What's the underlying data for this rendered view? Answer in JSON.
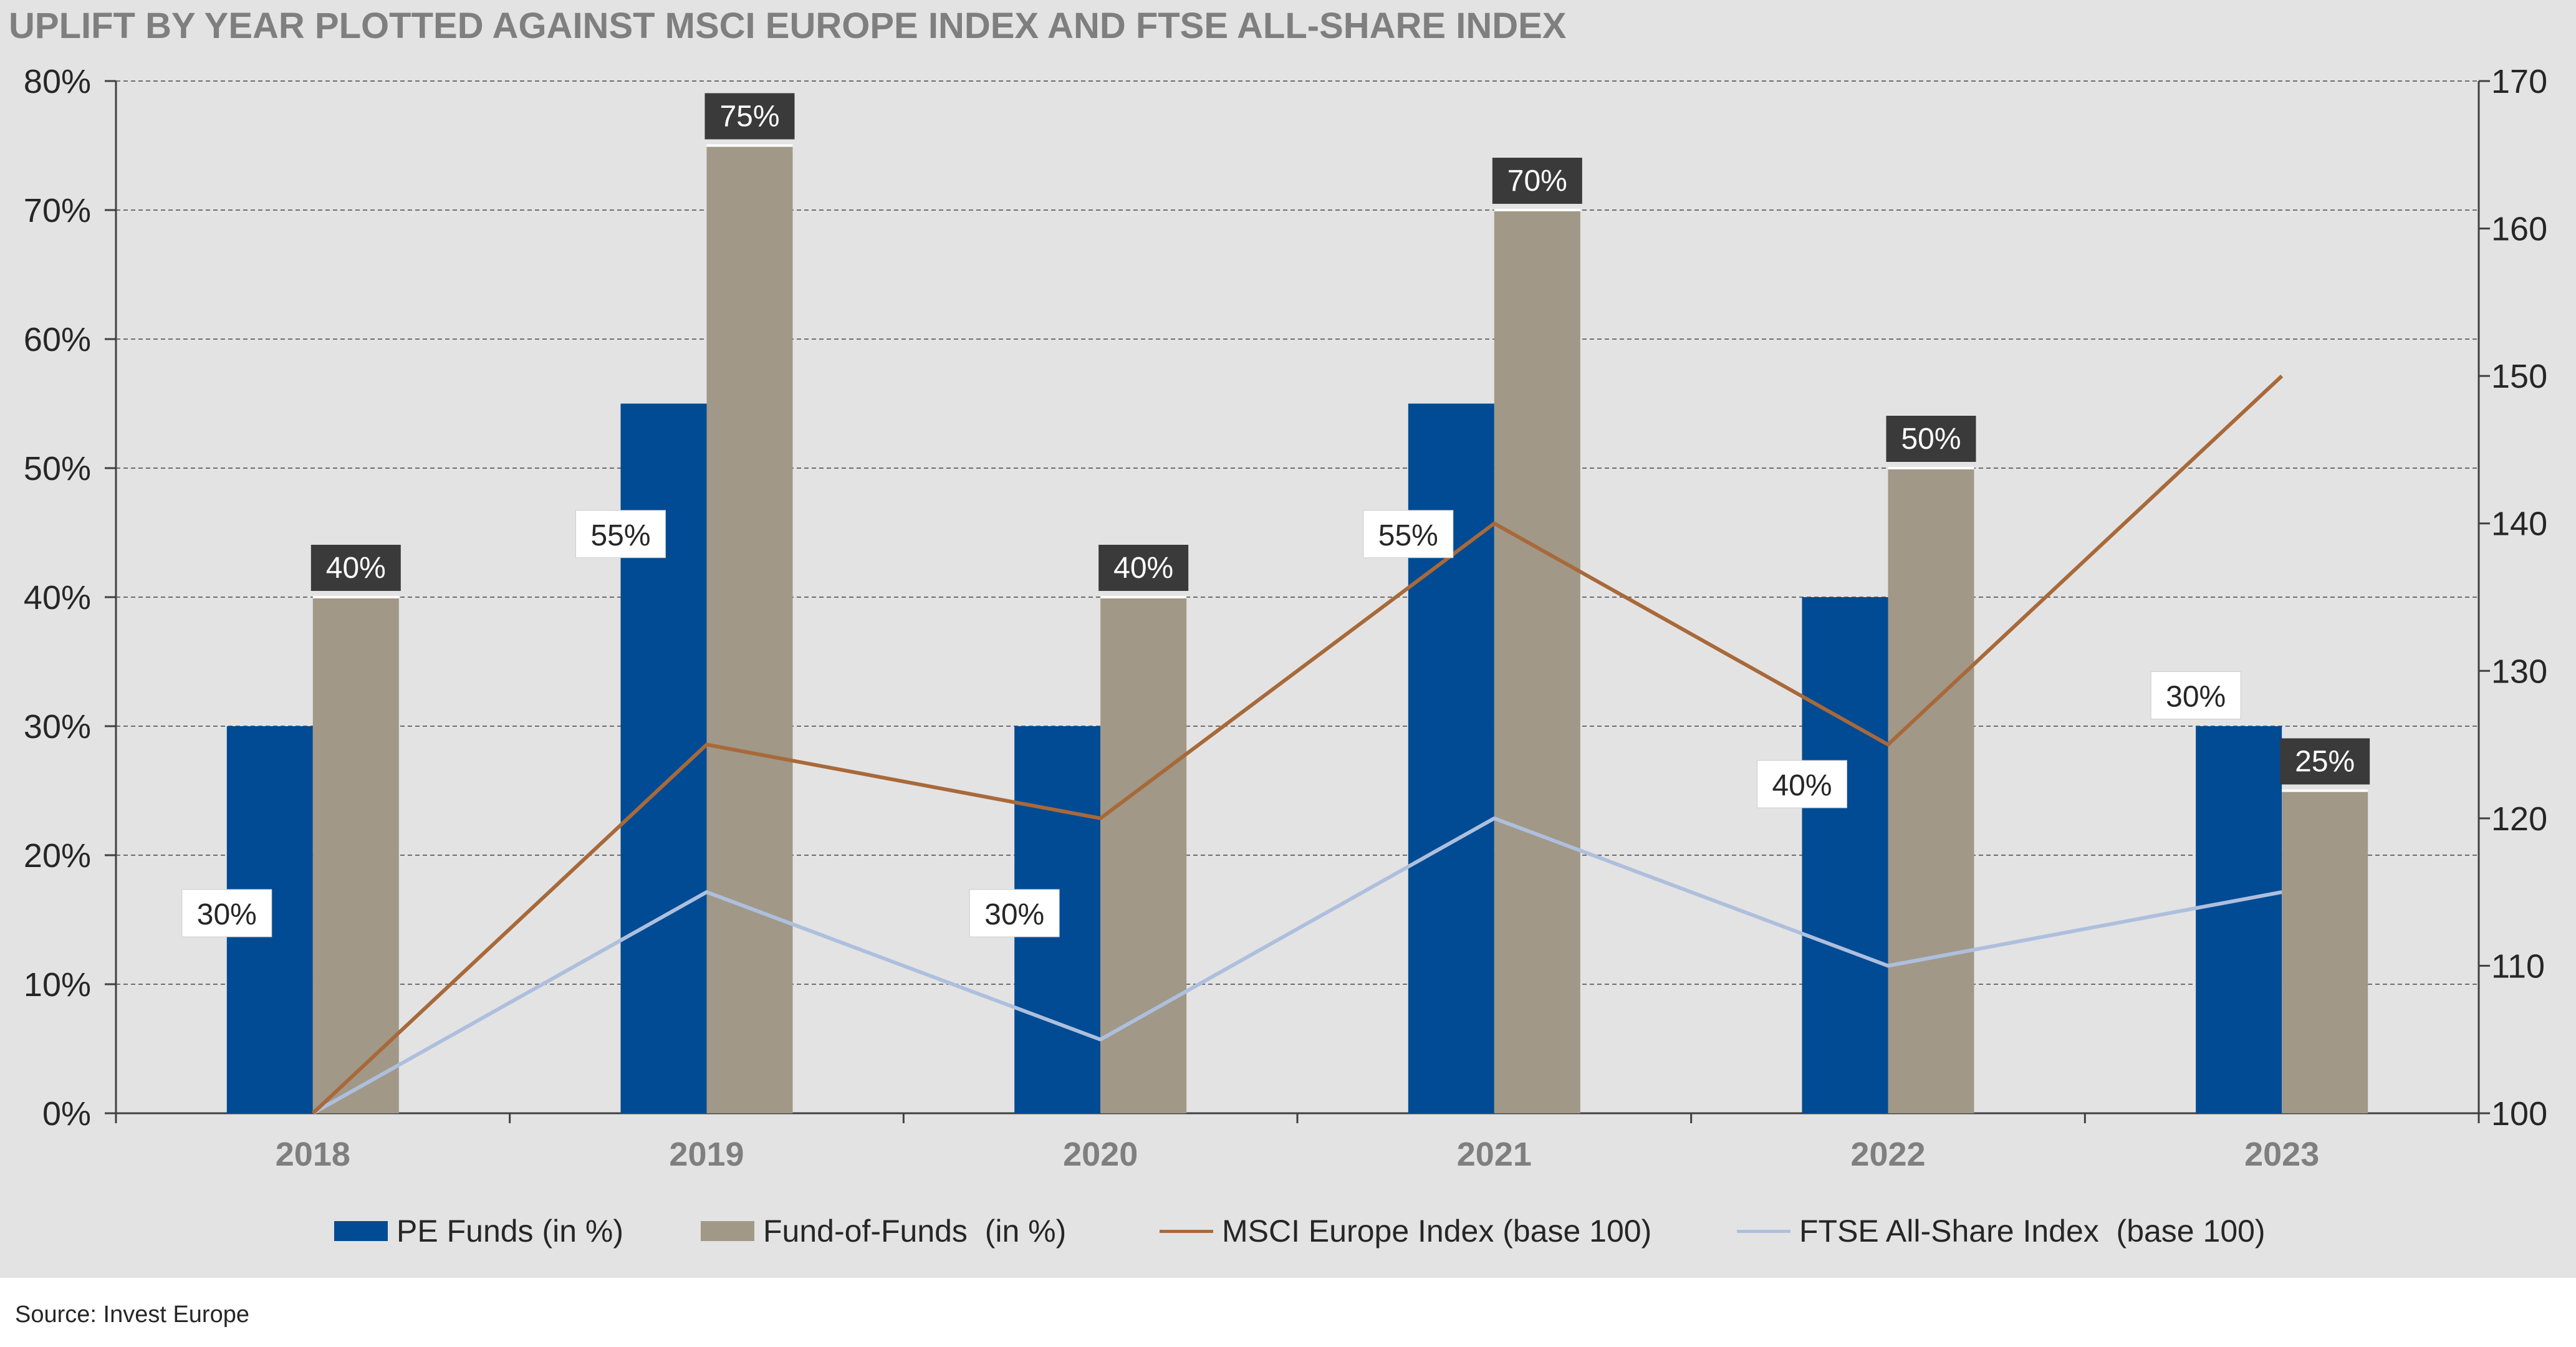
{
  "chart_data": {
    "type": "bar",
    "title": "UPLIFT BY YEAR PLOTTED AGAINST MSCI EUROPE INDEX AND FTSE ALL-SHARE INDEX",
    "categories": [
      "2018",
      "2019",
      "2020",
      "2021",
      "2022",
      "2023"
    ],
    "xlabel": "",
    "ylabel": "",
    "ylim": [
      0,
      80
    ],
    "y_ticks": [
      "0%",
      "10%",
      "20%",
      "30%",
      "40%",
      "50%",
      "60%",
      "70%",
      "80%"
    ],
    "y2lim": [
      100,
      170
    ],
    "y2_ticks": [
      "100",
      "110",
      "120",
      "130",
      "140",
      "150",
      "160",
      "170"
    ],
    "grid": true,
    "legend_position": "bottom",
    "series": [
      {
        "name": "PE Funds (in %)",
        "type": "bar",
        "axis": "left",
        "color": "#004b93",
        "values": [
          30,
          55,
          30,
          55,
          40,
          30
        ],
        "labels": [
          "30%",
          "55%",
          "30%",
          "55%",
          "40%",
          "30%"
        ]
      },
      {
        "name": "Fund-of-Funds  (in %)",
        "type": "bar",
        "axis": "left",
        "color": "#a19887",
        "values": [
          40,
          75,
          40,
          70,
          50,
          25
        ],
        "labels": [
          "40%",
          "75%",
          "40%",
          "70%",
          "50%",
          "25%"
        ]
      },
      {
        "name": "MSCI Europe Index (base 100)",
        "type": "line",
        "axis": "right",
        "color": "#a8693a",
        "values": [
          100,
          125,
          120,
          140,
          125,
          150
        ]
      },
      {
        "name": "FTSE All-Share Index  (base 100)",
        "type": "line",
        "axis": "right",
        "color": "#aebfdd",
        "values": [
          100,
          115,
          105,
          120,
          110,
          115
        ]
      }
    ]
  },
  "source": "Source: Invest Europe"
}
